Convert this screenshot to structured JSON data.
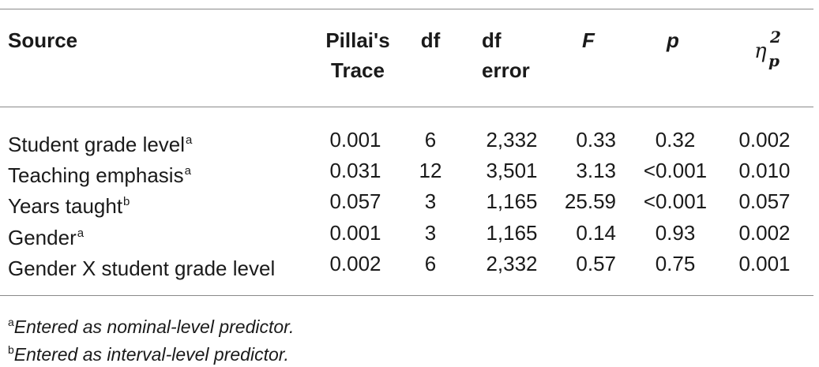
{
  "table": {
    "headers": {
      "source": "Source",
      "pillai_line1": "Pillai's",
      "pillai_line2": "Trace",
      "df": "df",
      "df_error_line1": "df",
      "df_error_line2": "error",
      "f": "F",
      "p": "p",
      "eta_symbol": "η",
      "eta_sup": "2",
      "eta_sub": "p"
    },
    "rows": [
      {
        "source": "Student grade level",
        "marker": "a",
        "pillai": "0.001",
        "df": "6",
        "df_error": "2,332",
        "f": "0.33",
        "p": "0.32",
        "eta": "0.002"
      },
      {
        "source": "Teaching emphasis",
        "marker": "a",
        "pillai": "0.031",
        "df": "12",
        "df_error": "3,501",
        "f": "3.13",
        "p": "<0.001",
        "eta": "0.010"
      },
      {
        "source": "Years taught",
        "marker": "b",
        "pillai": "0.057",
        "df": "3",
        "df_error": "1,165",
        "f": "25.59",
        "p": "<0.001",
        "eta": "0.057"
      },
      {
        "source": "Gender",
        "marker": "a",
        "pillai": "0.001",
        "df": "3",
        "df_error": "1,165",
        "f": "0.14",
        "p": "0.93",
        "eta": "0.002"
      },
      {
        "source": "Gender X student grade level",
        "marker": "",
        "pillai": "0.002",
        "df": "6",
        "df_error": "2,332",
        "f": "0.57",
        "p": "0.75",
        "eta": "0.001"
      }
    ]
  },
  "notes": [
    {
      "marker": "a",
      "text": "Entered as nominal-level predictor."
    },
    {
      "marker": "b",
      "text": "Entered as interval-level predictor."
    }
  ]
}
